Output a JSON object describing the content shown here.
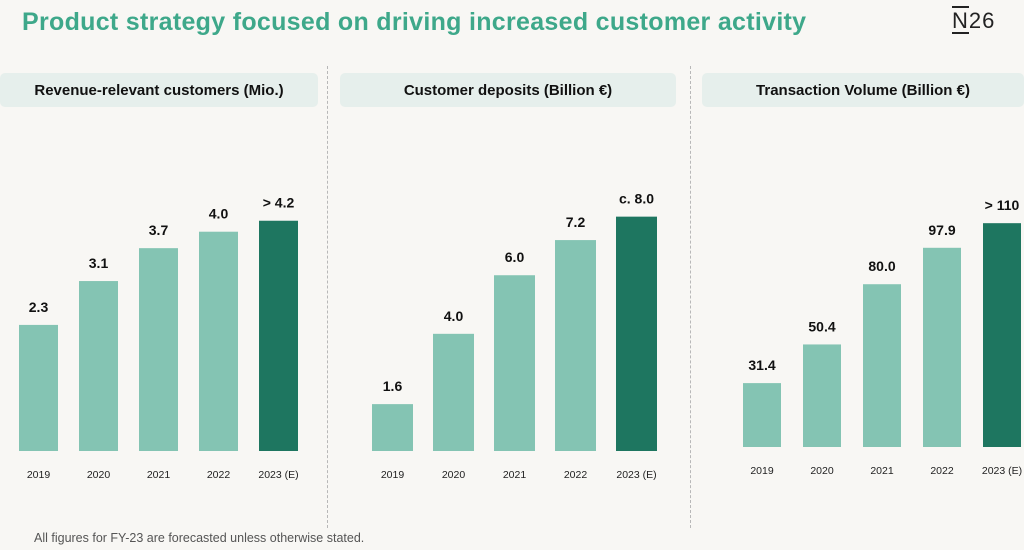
{
  "title": "Product strategy focused on driving increased customer activity",
  "logo": "N26",
  "footnote": "All figures for FY-23 are forecasted unless otherwise stated.",
  "colors": {
    "title": "#3ea88a",
    "bar_light": "#84c4b3",
    "bar_dark": "#1e7660",
    "header_bg": "#e6efec"
  },
  "chart_data": [
    {
      "type": "bar",
      "title": "Revenue-relevant customers (Mio.)",
      "categories": [
        "2019",
        "2020",
        "2021",
        "2022",
        "2023 (E)"
      ],
      "values": [
        2.3,
        3.1,
        3.7,
        4.0,
        4.2
      ],
      "data_labels": [
        "2.3",
        "3.1",
        "3.7",
        "4.0",
        "> 4.2"
      ],
      "highlight_index": 4,
      "ylim": [
        0,
        4.25
      ]
    },
    {
      "type": "bar",
      "title": "Customer deposits (Billion €)",
      "categories": [
        "2019",
        "2020",
        "2021",
        "2022",
        "2023 (E)"
      ],
      "values": [
        1.6,
        4.0,
        6.0,
        7.2,
        8.0
      ],
      "data_labels": [
        "1.6",
        "4.0",
        "6.0",
        "7.2",
        "c. 8.0"
      ],
      "highlight_index": 4,
      "ylim": [
        0,
        8.5
      ]
    },
    {
      "type": "bar",
      "title": "Transaction Volume (Billion €)",
      "categories": [
        "2019",
        "2020",
        "2021",
        "2022",
        "2023 (E)"
      ],
      "values": [
        31.4,
        50.4,
        80.0,
        97.9,
        110
      ],
      "data_labels": [
        "31.4",
        "50.4",
        "80.0",
        "97.9",
        "> 110"
      ],
      "highlight_index": 4,
      "ylim": [
        0,
        115
      ]
    }
  ]
}
